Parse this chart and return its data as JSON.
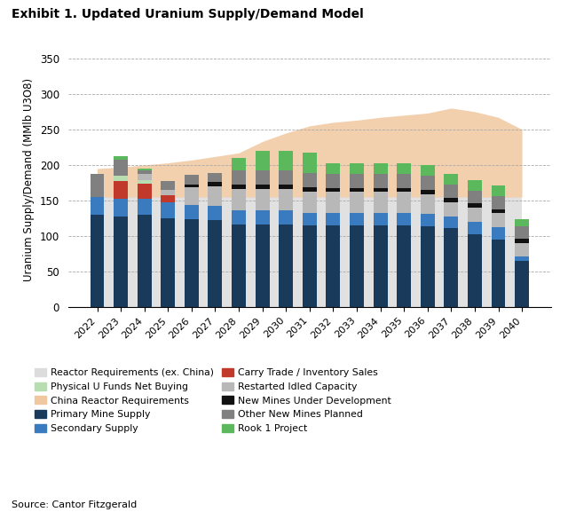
{
  "title": "Exhibit 1. Updated Uranium Supply/Demand Model",
  "ylabel": "Uranium Supply/Demand (MMlb U3O8)",
  "source": "Source: Cantor Fitzgerald",
  "years": [
    2022,
    2023,
    2024,
    2025,
    2026,
    2027,
    2028,
    2029,
    2030,
    2031,
    2032,
    2033,
    2034,
    2035,
    2036,
    2037,
    2038,
    2039,
    2040
  ],
  "ylim": [
    0,
    360
  ],
  "yticks": [
    0,
    50,
    100,
    150,
    200,
    250,
    300,
    350
  ],
  "primary_mine_supply": [
    130,
    128,
    130,
    125,
    124,
    122,
    116,
    116,
    116,
    115,
    115,
    115,
    115,
    115,
    114,
    111,
    103,
    95,
    65
  ],
  "secondary_supply": [
    25,
    25,
    22,
    22,
    20,
    20,
    20,
    20,
    20,
    18,
    17,
    17,
    17,
    17,
    17,
    17,
    17,
    17,
    7
  ],
  "carry_trade": [
    0,
    25,
    22,
    10,
    0,
    0,
    0,
    0,
    0,
    0,
    0,
    0,
    0,
    0,
    0,
    0,
    0,
    0,
    0
  ],
  "physical_u_funds": [
    0,
    7,
    5,
    0,
    0,
    0,
    0,
    0,
    0,
    0,
    0,
    0,
    0,
    0,
    0,
    0,
    0,
    0,
    0
  ],
  "restarted_idled": [
    0,
    0,
    8,
    8,
    25,
    28,
    30,
    30,
    30,
    30,
    30,
    30,
    30,
    30,
    28,
    20,
    20,
    20,
    18
  ],
  "new_mines_dev": [
    0,
    0,
    0,
    0,
    4,
    6,
    6,
    6,
    6,
    6,
    6,
    6,
    6,
    6,
    6,
    6,
    6,
    6,
    6
  ],
  "other_new_mines": [
    32,
    22,
    5,
    12,
    13,
    13,
    20,
    20,
    20,
    20,
    20,
    20,
    20,
    20,
    20,
    18,
    18,
    18,
    18
  ],
  "rook1": [
    0,
    5,
    3,
    0,
    0,
    0,
    18,
    28,
    28,
    28,
    15,
    15,
    15,
    15,
    15,
    15,
    15,
    15,
    10
  ],
  "color_primary_mine": "#1a3a5c",
  "color_secondary_supply": "#3a7abf",
  "color_carry_trade": "#c0392b",
  "color_physical_u_funds": "#b8ddb0",
  "color_restarted_idled": "#b8b8b8",
  "color_new_mines_dev": "#111111",
  "color_other_new_mines": "#808080",
  "color_rook1": "#5cb85c",
  "color_reactor_req_ex_china": "#dcdcdc",
  "color_china_reactor_req": "#f0c8a0",
  "reactor_req_ex_china_area": [
    155,
    155,
    155,
    155,
    155,
    155,
    155,
    155,
    155,
    155,
    155,
    155,
    155,
    155,
    155,
    155,
    155,
    155,
    155
  ],
  "china_reactor_req_area": [
    40,
    42,
    45,
    48,
    52,
    57,
    62,
    78,
    90,
    100,
    105,
    108,
    112,
    115,
    118,
    125,
    120,
    112,
    95
  ]
}
